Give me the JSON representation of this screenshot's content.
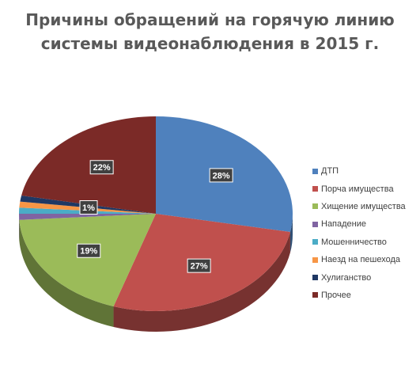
{
  "chart_data": {
    "type": "pie",
    "title": "Причины обращений на горячую линию системы видеонаблюдения в 2015 г.",
    "title_lines": [
      "Причины обращений на горячую линию",
      "системы видеонаблюдения в 2015 г."
    ],
    "style": "3d",
    "legend_position": "right",
    "categories": [
      "ДТП",
      "Порча имущества",
      "Хищение имущества",
      "Нападение",
      "Мошенничество",
      "Наезд на пешехода",
      "Хулиганство",
      "Прочее"
    ],
    "values": [
      28,
      27,
      19,
      1,
      1,
      1,
      1,
      22
    ],
    "data_labels": [
      "28%",
      "27%",
      "19%",
      "",
      "",
      "1%",
      "",
      "22%"
    ],
    "colors": [
      "#4F81BD",
      "#C0504D",
      "#9BBB59",
      "#8064A2",
      "#4BACC6",
      "#F79646",
      "#1F3864",
      "#7B2A27"
    ]
  }
}
